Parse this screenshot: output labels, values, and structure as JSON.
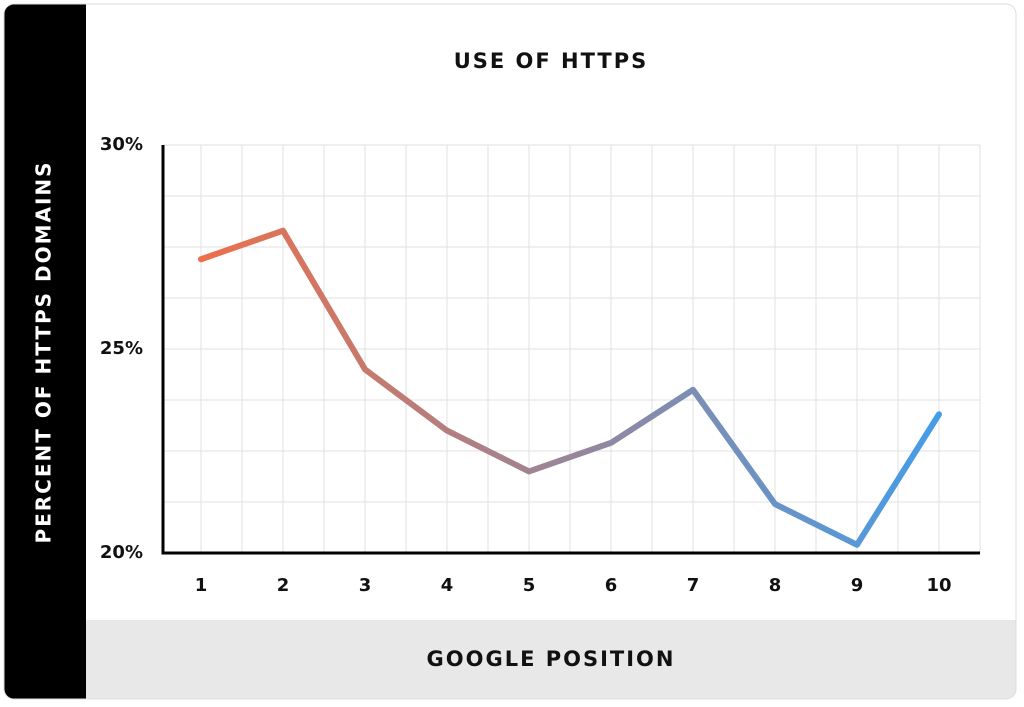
{
  "chart_data": {
    "type": "line",
    "title": "USE OF HTTPS",
    "x_label": "GOOGLE POSITION",
    "y_label": "PERCENT OF HTTPS DOMAINS",
    "categories": [
      "1",
      "2",
      "3",
      "4",
      "5",
      "6",
      "7",
      "8",
      "9",
      "10"
    ],
    "values": [
      27.2,
      27.9,
      24.5,
      23.0,
      22.0,
      22.7,
      24.0,
      21.2,
      20.2,
      23.4
    ],
    "color_start": "#ec6f4a",
    "color_end": "#449de9",
    "ylim": [
      20,
      30
    ],
    "yticks": [
      {
        "value": 20,
        "label": "20%"
      },
      {
        "value": 25,
        "label": "25%"
      },
      {
        "value": 30,
        "label": "30%"
      }
    ],
    "yminor": [
      21.25,
      22.5,
      23.75,
      26.25,
      27.5,
      28.75
    ],
    "grid": true
  }
}
